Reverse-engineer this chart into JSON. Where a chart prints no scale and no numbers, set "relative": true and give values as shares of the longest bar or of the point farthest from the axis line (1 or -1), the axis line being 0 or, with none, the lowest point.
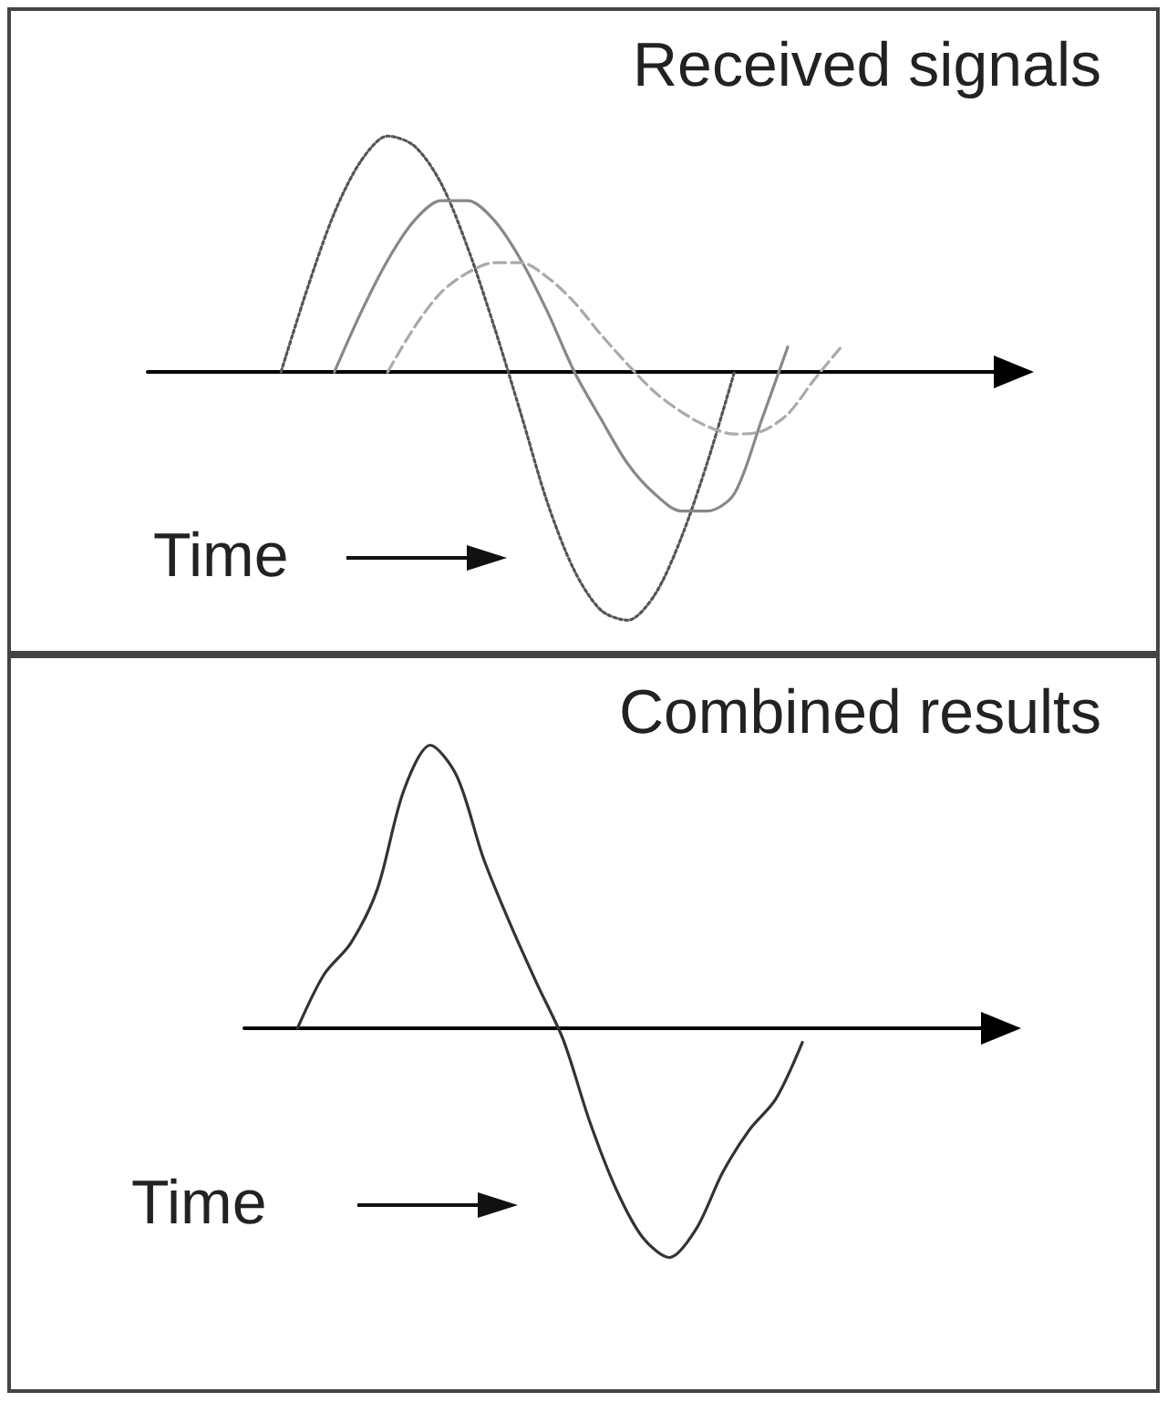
{
  "chart_data": [
    {
      "type": "line",
      "title": "Received signals",
      "xlabel": "Time",
      "relative": true,
      "marker": "none",
      "categories": [
        null,
        null,
        null,
        null,
        null,
        null,
        null,
        null,
        null,
        null,
        null,
        null,
        null,
        null,
        null,
        null,
        null,
        null,
        null,
        null,
        null,
        null,
        null,
        null,
        null,
        null,
        null,
        null,
        null,
        null,
        null,
        null,
        null
      ],
      "series": [
        {
          "color": "#555555",
          "line_style": "dotted",
          "values": [
            null,
            null,
            null,
            null,
            null,
            0,
            0.34,
            0.64,
            0.85,
            0.95,
            0.91,
            0.76,
            0.5,
            0.18,
            -0.17,
            -0.53,
            -0.8,
            -0.96,
            -1,
            -0.9,
            -0.67,
            -0.36,
            0,
            null,
            null,
            null,
            null,
            null,
            null,
            null,
            null,
            null,
            null
          ]
        },
        {
          "color": "#888888",
          "line_style": "solid",
          "values": [
            null,
            null,
            null,
            null,
            null,
            null,
            null,
            0,
            0.24,
            0.45,
            0.61,
            0.69,
            0.69,
            0.61,
            0.45,
            0.24,
            0,
            -0.19,
            -0.37,
            -0.49,
            -0.56,
            -0.56,
            -0.49,
            -0.2,
            0.1,
            null,
            null,
            null,
            null,
            null,
            null,
            null,
            null
          ]
        },
        {
          "color": "#aaaaaa",
          "line_style": "dashed",
          "values": [
            null,
            null,
            null,
            null,
            null,
            null,
            null,
            null,
            null,
            0,
            0.18,
            0.32,
            0.4,
            0.44,
            0.44,
            0.38,
            0.28,
            0.15,
            0.03,
            -0.08,
            -0.16,
            -0.22,
            -0.25,
            -0.24,
            -0.17,
            -0.03,
            0.1,
            null,
            null,
            null,
            null,
            null,
            null
          ]
        }
      ]
    },
    {
      "type": "line",
      "title": "Combined results",
      "xlabel": "Time",
      "relative": true,
      "marker": "none",
      "categories": [
        null,
        null,
        null,
        null,
        null,
        null,
        null,
        null,
        null,
        null,
        null,
        null,
        null,
        null,
        null,
        null,
        null,
        null,
        null,
        null,
        null,
        null,
        null,
        null,
        null,
        null,
        null,
        null,
        null
      ],
      "series": [
        {
          "color": "#333333",
          "line_style": "solid",
          "values": [
            null,
            null,
            0,
            0.19,
            0.3,
            0.49,
            0.84,
            1,
            0.89,
            0.6,
            0.37,
            0.16,
            -0.04,
            -0.33,
            -0.57,
            -0.74,
            -0.81,
            -0.71,
            -0.51,
            -0.36,
            -0.25,
            -0.05,
            null,
            null,
            null,
            null,
            null,
            null,
            null
          ]
        }
      ]
    }
  ]
}
